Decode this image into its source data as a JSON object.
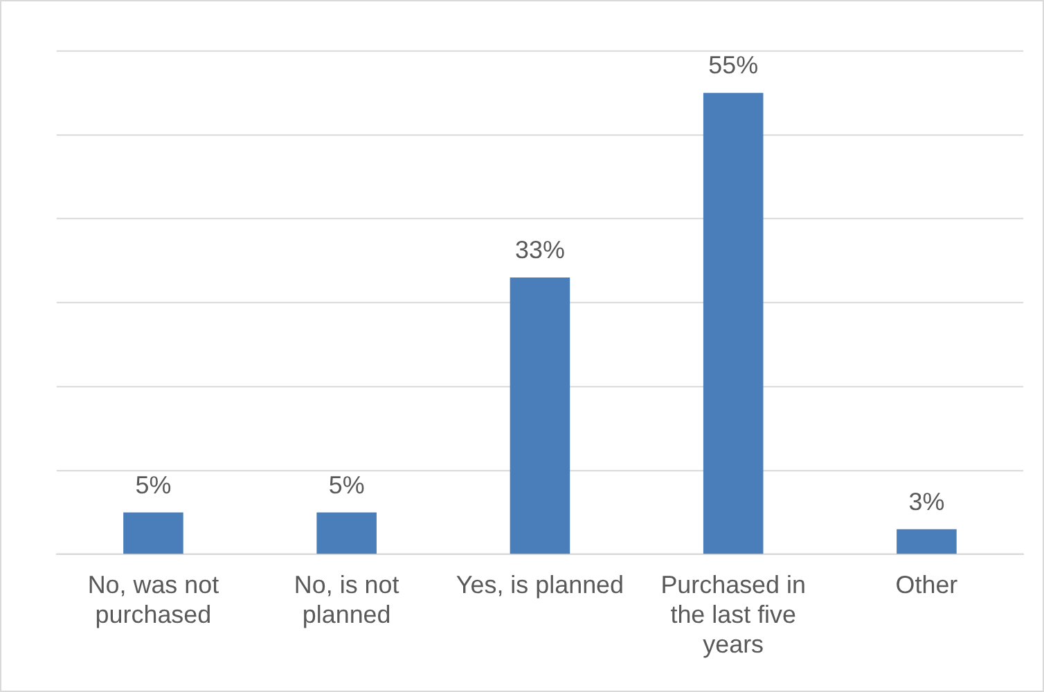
{
  "chart_data": {
    "type": "bar",
    "categories": [
      "No, was not purchased",
      "No, is not planned",
      "Yes, is planned",
      "Purchased in the last five years",
      "Other"
    ],
    "values": [
      5,
      5,
      33,
      55,
      3
    ],
    "value_labels": [
      "5%",
      "5%",
      "33%",
      "55%",
      "3%"
    ],
    "color": "#4a7ebb",
    "ylim": [
      0,
      60
    ],
    "yticks": [
      {
        "value": 0,
        "label": null
      },
      {
        "value": 10,
        "label": null
      },
      {
        "value": 20,
        "label": null
      },
      {
        "value": 30,
        "label": null
      },
      {
        "value": 40,
        "label": null
      },
      {
        "value": 50,
        "label": null
      },
      {
        "value": 60,
        "label": null
      }
    ],
    "grid": "y",
    "legend": false,
    "tick_labels": "x"
  }
}
